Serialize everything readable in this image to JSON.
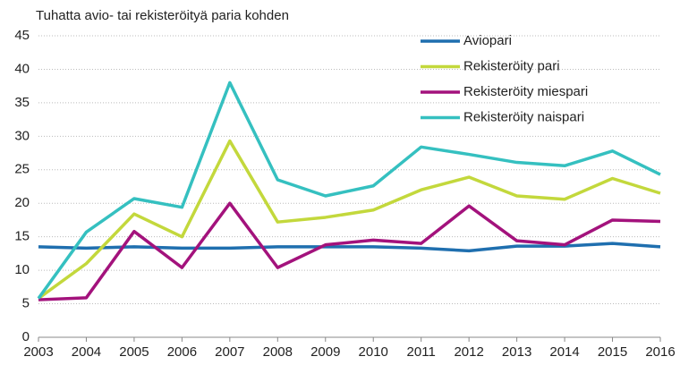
{
  "chart_data": {
    "type": "line",
    "title": "Tuhatta avio- tai rekisteröityä paria kohden",
    "x": [
      2003,
      2004,
      2005,
      2006,
      2007,
      2008,
      2009,
      2010,
      2011,
      2012,
      2013,
      2014,
      2015,
      2016
    ],
    "xlim": [
      2003,
      2016
    ],
    "xticks": [
      2003,
      2004,
      2005,
      2006,
      2007,
      2008,
      2009,
      2010,
      2011,
      2012,
      2013,
      2014,
      2015,
      2016
    ],
    "ylim": [
      0,
      45
    ],
    "yticks": [
      0,
      5,
      10,
      15,
      20,
      25,
      30,
      35,
      40,
      45
    ],
    "grid": true,
    "legend": "upper right",
    "series": [
      {
        "name": "Aviopari",
        "color": "#1f6faf",
        "values": [
          13.5,
          13.3,
          13.5,
          13.3,
          13.3,
          13.5,
          13.5,
          13.5,
          13.3,
          12.9,
          13.6,
          13.6,
          14.0,
          13.5
        ]
      },
      {
        "name": "Rekisteröity pari",
        "color": "#c3d83c",
        "values": [
          5.8,
          11.0,
          18.4,
          15.0,
          29.3,
          17.2,
          17.9,
          19.0,
          22.0,
          23.9,
          21.1,
          20.6,
          23.7,
          21.5
        ]
      },
      {
        "name": "Rekisteröity miespari",
        "color": "#a3127c",
        "values": [
          5.6,
          5.9,
          15.8,
          10.4,
          20.0,
          10.4,
          13.8,
          14.5,
          14.0,
          19.6,
          14.4,
          13.8,
          17.5,
          17.3
        ]
      },
      {
        "name": "Rekisteröity naispari",
        "color": "#35c0c0",
        "values": [
          5.8,
          15.7,
          20.7,
          19.4,
          38.0,
          23.5,
          21.1,
          22.6,
          28.4,
          27.3,
          26.1,
          25.6,
          27.8,
          24.3
        ]
      }
    ]
  }
}
